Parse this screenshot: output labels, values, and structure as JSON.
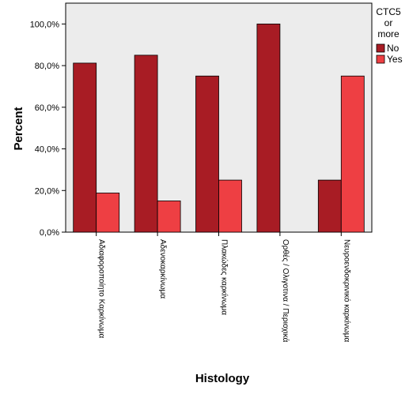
{
  "chart_data": {
    "type": "bar",
    "xlabel": "Histology",
    "ylabel": "Percent",
    "ylim": [
      0,
      110
    ],
    "yticks": [
      0,
      20,
      40,
      60,
      80,
      100
    ],
    "ytick_labels": [
      "0,0%",
      "20,0%",
      "40,0%",
      "60,0%",
      "80,0%",
      "100,0%"
    ],
    "grid": false,
    "legend_position": "right",
    "legend_title_lines": [
      "CTC5",
      "or",
      "more"
    ],
    "categories": [
      "Αδιαφοροποίητο Καρκίνωμα",
      "Αδενοκαρκίνωμα",
      "Πλακώδες καρκίνωμα",
      "Ορθές / Ολιγοτινα / Περιοχικά",
      "Νευροενδοκρινικό καρκίνωμα"
    ],
    "series": [
      {
        "name": "No",
        "color": "#a81c24",
        "values": [
          81.2,
          85.0,
          75.0,
          100.0,
          25.0
        ]
      },
      {
        "name": "Yes",
        "color": "#ee3f43",
        "values": [
          18.8,
          15.0,
          25.0,
          0.0,
          75.0
        ]
      }
    ],
    "plot_background": "#ececec"
  }
}
